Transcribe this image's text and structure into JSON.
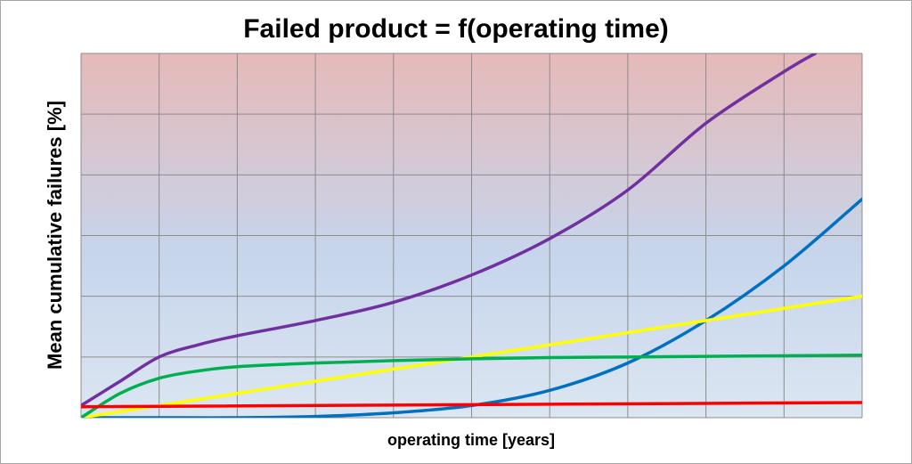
{
  "chart_data": {
    "type": "line",
    "title": "Failed product = f(operating time)",
    "xlabel": "operating time [years]",
    "ylabel": "Mean cumulative failures [%]",
    "xlim": [
      0,
      10
    ],
    "ylim": [
      0,
      6
    ],
    "grid": true,
    "x_tick_labels_shown": false,
    "y_tick_labels_shown": false,
    "background_gradient": {
      "top": "#e6b9b8",
      "bottom": "#dce6f2",
      "middle": "#c6d5ec"
    },
    "series": [
      {
        "color": "#7030a0",
        "x": [
          0,
          0.5,
          1,
          1.5,
          2,
          3,
          4,
          5,
          6,
          7,
          8,
          9,
          9.4
        ],
        "values": [
          0.2,
          0.6,
          1.0,
          1.2,
          1.35,
          1.6,
          1.9,
          2.35,
          2.95,
          3.75,
          4.85,
          5.7,
          6.0
        ]
      },
      {
        "color": "#0070c0",
        "x": [
          0,
          1,
          2,
          3,
          4,
          5,
          6,
          7,
          8,
          9,
          10
        ],
        "values": [
          0,
          0,
          0,
          0.02,
          0.08,
          0.2,
          0.45,
          0.9,
          1.6,
          2.5,
          3.6
        ]
      },
      {
        "color": "#ffff00",
        "x": [
          0,
          10
        ],
        "values": [
          0,
          2.0
        ]
      },
      {
        "color": "#00b050",
        "x": [
          0,
          0.5,
          1,
          1.5,
          2,
          3,
          4,
          5,
          6,
          7,
          8,
          9,
          10
        ],
        "values": [
          0,
          0.4,
          0.65,
          0.77,
          0.84,
          0.9,
          0.94,
          0.97,
          0.99,
          1.0,
          1.01,
          1.02,
          1.03
        ]
      },
      {
        "color": "#ff0000",
        "x": [
          0,
          10
        ],
        "values": [
          0.18,
          0.25
        ]
      }
    ]
  }
}
